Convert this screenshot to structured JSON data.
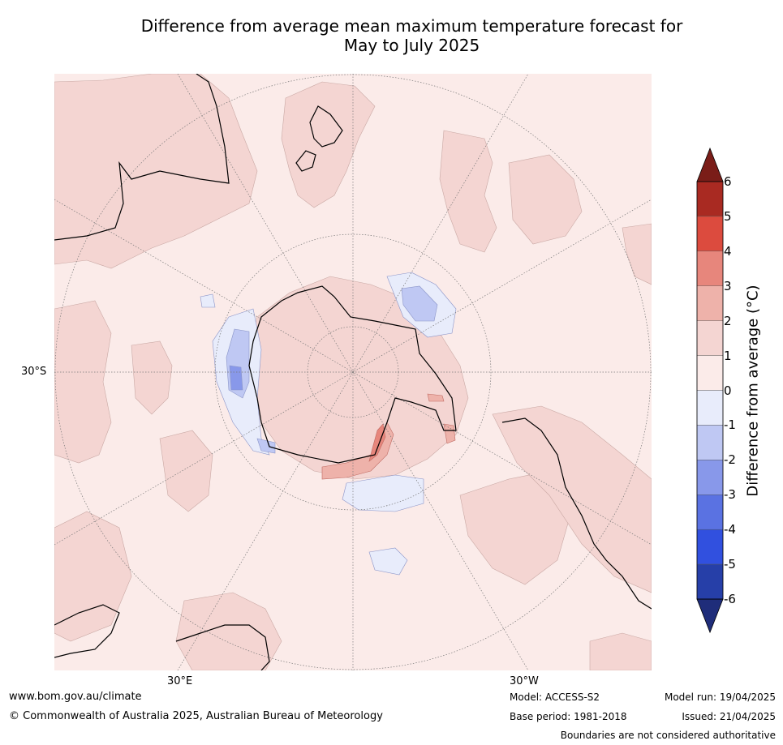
{
  "title": {
    "line1": "Difference from average mean maximum temperature forecast for",
    "line2": "May to July 2025"
  },
  "map": {
    "projection": "south-polar-stereographic",
    "ocean_color": "#fbebe9",
    "warm_region_color": "#f4d5d2",
    "land_outline_color": "#000000",
    "coordinate_labels": {
      "lat": "30°S",
      "lon_left": "30°E",
      "lon_right": "30°W"
    }
  },
  "colorbar": {
    "label": "Difference from average (°C)",
    "ticks": [
      "6",
      "5",
      "4",
      "3",
      "2",
      "1",
      "0",
      "-1",
      "-2",
      "-3",
      "-4",
      "-5",
      "-6"
    ],
    "colors": [
      "#a92a22",
      "#dc4b3e",
      "#e7867c",
      "#eeb2aa",
      "#f4d5d2",
      "#fbebe9",
      "#e8ecfb",
      "#bfc8f3",
      "#8898ea",
      "#5a72e2",
      "#3150df",
      "#263fa8"
    ],
    "over_color": "#7a1d18",
    "under_color": "#1f2d7a"
  },
  "footer": {
    "website": "www.bom.gov.au/climate",
    "copyright": "© Commonwealth of Australia 2025, Australian Bureau of Meteorology",
    "model": "Model: ACCESS-S2",
    "base_period": "Base period: 1981-2018",
    "model_run": "Model run: 19/04/2025",
    "issued": "Issued: 21/04/2025",
    "disclaimer": "Boundaries are not considered authoritative"
  }
}
